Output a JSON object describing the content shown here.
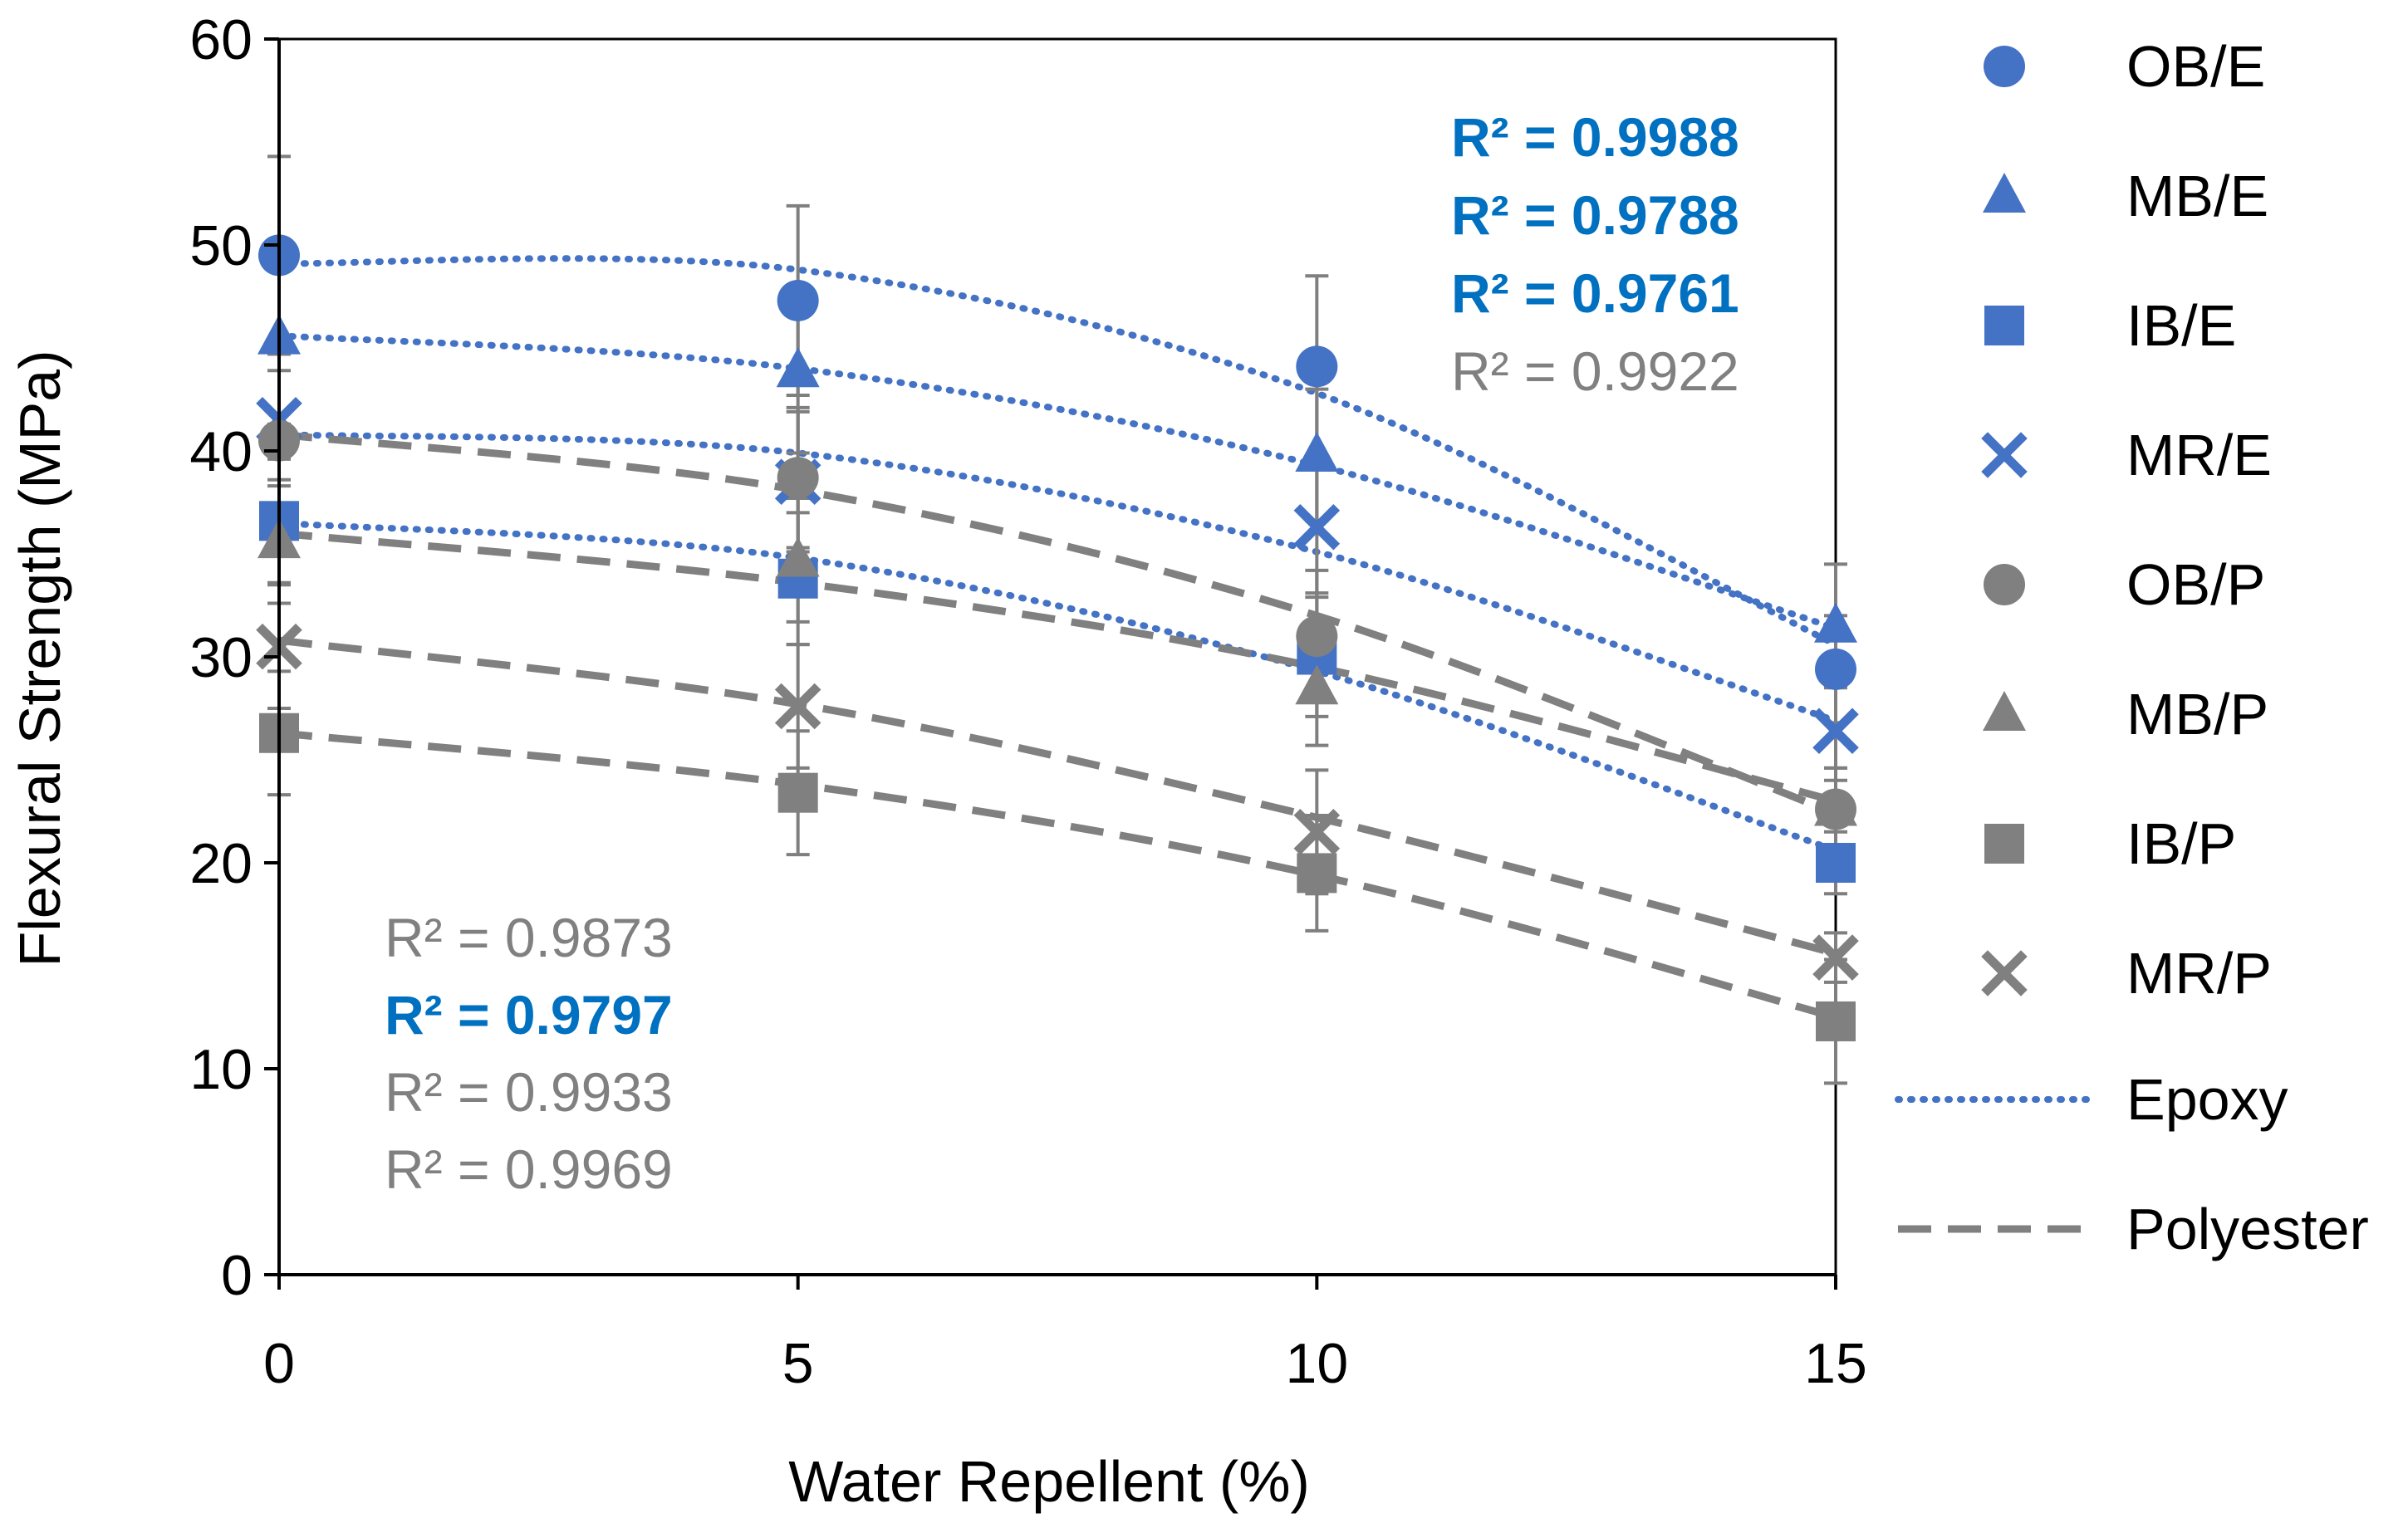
{
  "chart_data": {
    "type": "scatter",
    "xlabel": "Water Repellent (%)",
    "ylabel": "Flexural Strength (MPa)",
    "xlim": [
      0,
      15
    ],
    "ylim": [
      0,
      60
    ],
    "xticks": [
      0,
      5,
      10,
      15
    ],
    "yticks": [
      0,
      10,
      20,
      30,
      40,
      50,
      60
    ],
    "grid": false,
    "legend_position": "right",
    "colors": {
      "epoxy": "#4472C4",
      "polyester": "#808080",
      "r2_epoxy": "#0070C0",
      "r2_polyester": "#808080"
    },
    "x": [
      0,
      5,
      10,
      15
    ],
    "series": [
      {
        "name": "OB/E",
        "group": "epoxy",
        "marker": "circle",
        "values": [
          49.5,
          47.3,
          44.1,
          29.4
        ],
        "err": [
          4.8,
          4.6,
          4.4,
          2.6
        ]
      },
      {
        "name": "MB/E",
        "group": "epoxy",
        "marker": "triangle",
        "values": [
          45.5,
          43.9,
          39.8,
          31.5
        ],
        "err": [
          4.2,
          4.0,
          3.2,
          3.0
        ]
      },
      {
        "name": "IB/E",
        "group": "epoxy",
        "marker": "square",
        "values": [
          36.6,
          33.8,
          30.1,
          20.0
        ],
        "err": [
          3.0,
          3.2,
          3.0,
          1.5
        ]
      },
      {
        "name": "MR/E",
        "group": "epoxy",
        "marker": "x",
        "values": [
          41.5,
          38.5,
          36.3,
          26.4
        ],
        "err": [
          3.2,
          3.4,
          3.4,
          2.4
        ]
      },
      {
        "name": "OB/P",
        "group": "polyester",
        "marker": "circle",
        "values": [
          40.5,
          38.7,
          31.0,
          22.6
        ],
        "err": [
          3.4,
          3.4,
          3.2,
          2.0
        ]
      },
      {
        "name": "MB/P",
        "group": "polyester",
        "marker": "triangle",
        "values": [
          35.6,
          34.7,
          28.5,
          22.6
        ],
        "err": [
          3.0,
          3.0,
          2.8,
          2.0
        ]
      },
      {
        "name": "IB/P",
        "group": "polyester",
        "marker": "square",
        "values": [
          26.3,
          23.4,
          19.5,
          12.3
        ],
        "err": [
          3.0,
          3.0,
          2.8,
          3.0
        ]
      },
      {
        "name": "MR/P",
        "group": "polyester",
        "marker": "x",
        "values": [
          30.5,
          27.6,
          21.5,
          15.4
        ],
        "err": [
          3.0,
          3.0,
          3.0,
          1.2
        ]
      }
    ],
    "trendlines": [
      {
        "group": "epoxy",
        "values": [
          49.1,
          48.8,
          42.8,
          30.6
        ]
      },
      {
        "group": "epoxy",
        "values": [
          45.6,
          44.0,
          39.3,
          31.4
        ]
      },
      {
        "group": "epoxy",
        "values": [
          40.8,
          39.9,
          35.1,
          26.9
        ]
      },
      {
        "group": "epoxy",
        "values": [
          36.5,
          34.8,
          29.3,
          20.6
        ]
      },
      {
        "group": "polyester",
        "values": [
          40.8,
          38.1,
          32.0,
          22.4
        ]
      },
      {
        "group": "polyester",
        "values": [
          36.0,
          33.6,
          29.5,
          23.0
        ]
      },
      {
        "group": "polyester",
        "values": [
          30.8,
          27.7,
          22.2,
          15.6
        ]
      },
      {
        "group": "polyester",
        "values": [
          26.3,
          23.8,
          19.4,
          12.5
        ]
      }
    ],
    "legend_lines": [
      {
        "name": "Epoxy",
        "group": "epoxy",
        "dash": "dotted"
      },
      {
        "name": "Polyester",
        "group": "polyester",
        "dash": "dashed"
      }
    ],
    "annotations_top": [
      {
        "text": "R² = 0.9988",
        "group": "epoxy"
      },
      {
        "text": "R² = 0.9788",
        "group": "epoxy"
      },
      {
        "text": "R² = 0.9761",
        "group": "epoxy"
      },
      {
        "text": "R² = 0.9922",
        "group": "polyester"
      }
    ],
    "annotations_bottom": [
      {
        "text": "R² = 0.9873",
        "group": "polyester"
      },
      {
        "text": "R² = 0.9797",
        "group": "epoxy"
      },
      {
        "text": "R² = 0.9933",
        "group": "polyester"
      },
      {
        "text": "R² = 0.9969",
        "group": "polyester"
      }
    ]
  }
}
